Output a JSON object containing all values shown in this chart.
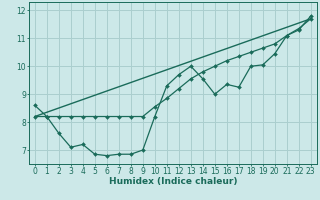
{
  "title": "",
  "xlabel": "Humidex (Indice chaleur)",
  "ylabel": "",
  "background_color": "#cce8e8",
  "grid_color": "#aacece",
  "line_color": "#1a6b5a",
  "xlim": [
    -0.5,
    23.5
  ],
  "ylim": [
    6.5,
    12.3
  ],
  "yticks": [
    7,
    8,
    9,
    10,
    11,
    12
  ],
  "xticks": [
    0,
    1,
    2,
    3,
    4,
    5,
    6,
    7,
    8,
    9,
    10,
    11,
    12,
    13,
    14,
    15,
    16,
    17,
    18,
    19,
    20,
    21,
    22,
    23
  ],
  "line1_x": [
    0,
    1,
    2,
    3,
    4,
    5,
    6,
    7,
    8,
    9,
    10,
    11,
    12,
    13,
    14,
    15,
    16,
    17,
    18,
    19,
    20,
    21,
    22,
    23
  ],
  "line1_y": [
    8.6,
    8.2,
    7.6,
    7.1,
    7.2,
    6.85,
    6.8,
    6.85,
    6.85,
    7.0,
    8.2,
    9.3,
    9.7,
    10.0,
    9.55,
    9.0,
    9.35,
    9.25,
    10.0,
    10.05,
    10.45,
    11.1,
    11.3,
    11.8
  ],
  "line2_x": [
    0,
    1,
    2,
    3,
    4,
    5,
    6,
    7,
    8,
    9,
    10,
    11,
    12,
    13,
    14,
    15,
    16,
    17,
    18,
    19,
    20,
    21,
    22,
    23
  ],
  "line2_y": [
    8.2,
    8.2,
    8.2,
    8.2,
    8.2,
    8.2,
    8.2,
    8.2,
    8.2,
    8.2,
    8.55,
    8.85,
    9.2,
    9.55,
    9.8,
    10.0,
    10.2,
    10.35,
    10.5,
    10.65,
    10.8,
    11.1,
    11.35,
    11.7
  ],
  "line3_x": [
    0,
    23
  ],
  "line3_y": [
    8.2,
    11.7
  ],
  "tick_fontsize": 5.5,
  "xlabel_fontsize": 6.5
}
